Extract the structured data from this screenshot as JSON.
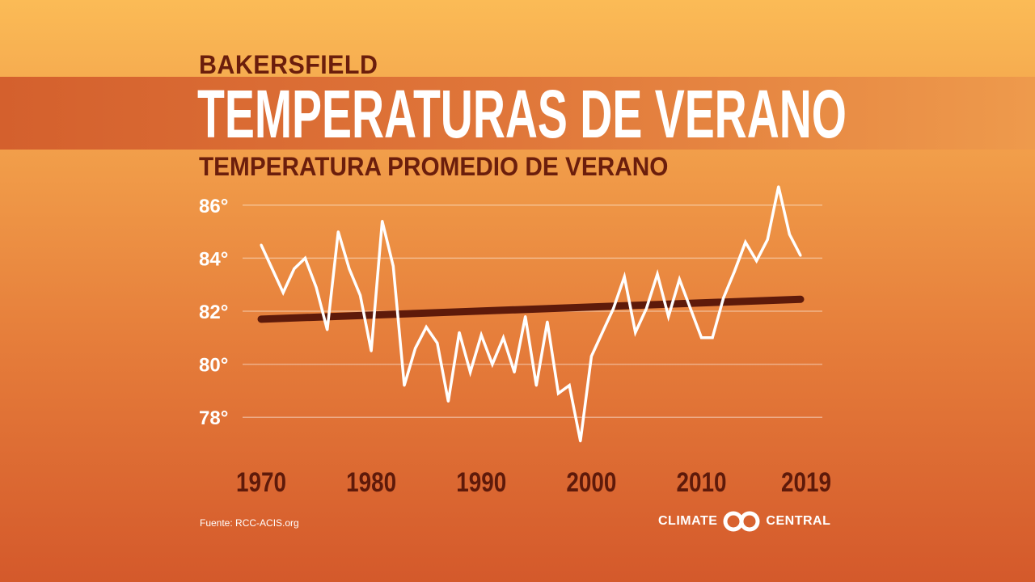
{
  "header": {
    "city": "BAKERSFIELD",
    "title": "TEMPERATURAS DE VERANO",
    "subtitle": "TEMPERATURA PROMEDIO DE VERANO"
  },
  "footer": {
    "source": "Fuente: RCC-ACIS.org",
    "logo_left": "CLIMATE",
    "logo_right": "CENTRAL"
  },
  "colors": {
    "line": "#ffffff",
    "trend": "#5e1a0a",
    "tick_label": "#5e1a0a",
    "y_tick_label": "#ffffff"
  },
  "chart_data": {
    "type": "line",
    "title": "TEMPERATURA PROMEDIO DE VERANO",
    "ylim": [
      77,
      87
    ],
    "xlim": [
      1970,
      2019
    ],
    "grid": true,
    "y_ticks": [
      {
        "v": 78,
        "label": "78°"
      },
      {
        "v": 80,
        "label": "80°"
      },
      {
        "v": 82,
        "label": "82°"
      },
      {
        "v": 84,
        "label": "84°"
      },
      {
        "v": 86,
        "label": "86°"
      }
    ],
    "x_ticks": [
      {
        "v": 1970,
        "label": "1970"
      },
      {
        "v": 1980,
        "label": "1980"
      },
      {
        "v": 1990,
        "label": "1990"
      },
      {
        "v": 2000,
        "label": "2000"
      },
      {
        "v": 2010,
        "label": "2010"
      },
      {
        "v": 2019,
        "label": "2019"
      }
    ],
    "x": [
      1970,
      1971,
      1972,
      1973,
      1974,
      1975,
      1976,
      1977,
      1978,
      1979,
      1980,
      1981,
      1982,
      1983,
      1984,
      1985,
      1986,
      1987,
      1988,
      1989,
      1990,
      1991,
      1992,
      1993,
      1994,
      1995,
      1996,
      1997,
      1998,
      1999,
      2000,
      2001,
      2002,
      2003,
      2004,
      2005,
      2006,
      2007,
      2008,
      2009,
      2010,
      2011,
      2012,
      2013,
      2014,
      2015,
      2016,
      2017,
      2018,
      2019
    ],
    "values": [
      84.5,
      83.6,
      82.7,
      83.6,
      84.0,
      82.9,
      81.3,
      85.0,
      83.6,
      82.6,
      80.5,
      85.4,
      83.7,
      79.2,
      80.6,
      81.4,
      80.8,
      78.6,
      81.2,
      79.7,
      81.1,
      80.0,
      81.0,
      79.7,
      81.8,
      79.2,
      81.6,
      78.9,
      79.2,
      77.1,
      80.3,
      81.2,
      82.1,
      83.3,
      81.2,
      82.1,
      83.4,
      81.8,
      83.2,
      82.1,
      81.0,
      81.0,
      82.5,
      83.5,
      84.6,
      83.9,
      84.7,
      86.7,
      84.9,
      84.1
    ],
    "trend": {
      "start": {
        "x": 1970,
        "y": 81.7
      },
      "end": {
        "x": 2019,
        "y": 82.45
      }
    }
  }
}
